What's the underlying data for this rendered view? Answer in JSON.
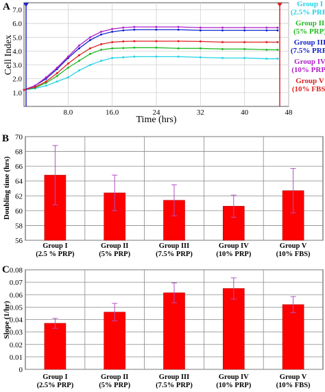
{
  "chart_data": [
    {
      "panel": "A",
      "type": "line",
      "xlabel": "Time (hrs)",
      "ylabel": "Cell Index",
      "xlim": [
        0,
        48
      ],
      "ylim": [
        0,
        7.5
      ],
      "xticks": [
        "8.0",
        "16.0",
        "24",
        "32",
        "40",
        "48"
      ],
      "yticks": [
        "1.0",
        "2.0",
        "3.0",
        "4.0",
        "5.0",
        "6.0",
        "7.0"
      ],
      "grid": true,
      "legend": "right",
      "series": [
        {
          "name": "Group I (2.5% PRP)",
          "color": "#22d3e6",
          "x": [
            0,
            2,
            4,
            6,
            8,
            10,
            12,
            14,
            16,
            18,
            20,
            24,
            28,
            32,
            36,
            40,
            44,
            46
          ],
          "y": [
            1.2,
            1.3,
            1.5,
            1.8,
            2.1,
            2.6,
            3.0,
            3.3,
            3.5,
            3.55,
            3.6,
            3.6,
            3.6,
            3.55,
            3.5,
            3.5,
            3.45,
            3.45
          ]
        },
        {
          "name": "Group II (5% PRP)",
          "color": "#22bb22",
          "x": [
            0,
            2,
            4,
            6,
            8,
            10,
            12,
            14,
            16,
            18,
            20,
            24,
            28,
            32,
            36,
            40,
            44,
            46
          ],
          "y": [
            1.2,
            1.35,
            1.7,
            2.2,
            2.8,
            3.3,
            3.8,
            4.1,
            4.2,
            4.22,
            4.25,
            4.25,
            4.2,
            4.2,
            4.15,
            4.15,
            4.1,
            4.1
          ]
        },
        {
          "name": "Group III (7.5% PRP)",
          "color": "#1122cc",
          "x": [
            0,
            2,
            4,
            6,
            8,
            10,
            12,
            14,
            16,
            18,
            20,
            24,
            28,
            32,
            36,
            40,
            44,
            46
          ],
          "y": [
            1.2,
            1.5,
            2.0,
            2.7,
            3.5,
            4.2,
            4.8,
            5.2,
            5.4,
            5.5,
            5.55,
            5.55,
            5.55,
            5.5,
            5.5,
            5.5,
            5.5,
            5.5
          ]
        },
        {
          "name": "Group IV (10% PRP)",
          "color": "#b020c8",
          "x": [
            0,
            2,
            4,
            6,
            8,
            10,
            12,
            14,
            16,
            18,
            20,
            24,
            28,
            32,
            36,
            40,
            44,
            46
          ],
          "y": [
            1.2,
            1.5,
            2.1,
            2.8,
            3.6,
            4.4,
            5.0,
            5.4,
            5.6,
            5.7,
            5.75,
            5.75,
            5.75,
            5.7,
            5.7,
            5.7,
            5.7,
            5.7
          ]
        },
        {
          "name": "Group V (10% FBS)",
          "color": "#e02020",
          "x": [
            0,
            2,
            4,
            6,
            8,
            10,
            12,
            14,
            16,
            18,
            20,
            24,
            28,
            32,
            36,
            40,
            44,
            46
          ],
          "y": [
            1.2,
            1.4,
            1.8,
            2.4,
            3.1,
            3.7,
            4.2,
            4.5,
            4.65,
            4.7,
            4.72,
            4.72,
            4.72,
            4.7,
            4.65,
            4.65,
            4.65,
            4.65
          ]
        }
      ]
    },
    {
      "panel": "B",
      "type": "bar",
      "ylabel": "Doubling time (hrs)",
      "ylim": [
        56,
        70
      ],
      "yticks": [
        "56",
        "58",
        "60",
        "62",
        "64",
        "66",
        "68",
        "70"
      ],
      "grid": true,
      "categories": [
        [
          "Group I",
          "(2.5 % PRP)"
        ],
        [
          "Group II",
          "(5% PRP)"
        ],
        [
          "Group III",
          "(7.5% PRP)"
        ],
        [
          "Group IV",
          "(10% PRP)"
        ],
        [
          "Group V",
          "(10% FBS)"
        ]
      ],
      "values": [
        64.8,
        62.4,
        61.4,
        60.6,
        62.7
      ],
      "errors": [
        4.0,
        2.4,
        2.1,
        1.5,
        3.0
      ],
      "bar_color": "#ff0000",
      "error_color": "#b050c0"
    },
    {
      "panel": "C",
      "type": "bar",
      "ylabel": "Slope (1/hr)",
      "ylim": [
        0,
        0.08
      ],
      "yticks": [
        "0",
        "0.01",
        "0.02",
        "0.03",
        "0.04",
        "0.05",
        "0.06",
        "0.07",
        "0.08"
      ],
      "grid": true,
      "categories": [
        [
          "Group I",
          "(2.5% PRP)"
        ],
        [
          "Group II",
          "(5% PRP)"
        ],
        [
          "Group III",
          "(7.5% PRP)"
        ],
        [
          "Group IV",
          "(10% PRP)"
        ],
        [
          "Group V",
          "(10% FBS)"
        ]
      ],
      "values": [
        0.037,
        0.046,
        0.0615,
        0.065,
        0.052
      ],
      "errors": [
        0.004,
        0.007,
        0.008,
        0.0085,
        0.0065
      ],
      "bar_color": "#ff0000",
      "error_color": "#b050c0"
    }
  ],
  "legend_a": [
    {
      "line1": "Group I",
      "line2": "(2.5% PRP)",
      "color": "#22d3e6"
    },
    {
      "line1": "Group II",
      "line2": "(5% PRP)",
      "color": "#22bb22"
    },
    {
      "line1": "Group III",
      "line2": "(7.5% PRP)",
      "color": "#1122cc"
    },
    {
      "line1": "Group IV",
      "line2": "(10% PRP)",
      "color": "#b020c8"
    },
    {
      "line1": "Group V",
      "line2": "(10% FBS)",
      "color": "#e02020"
    }
  ]
}
